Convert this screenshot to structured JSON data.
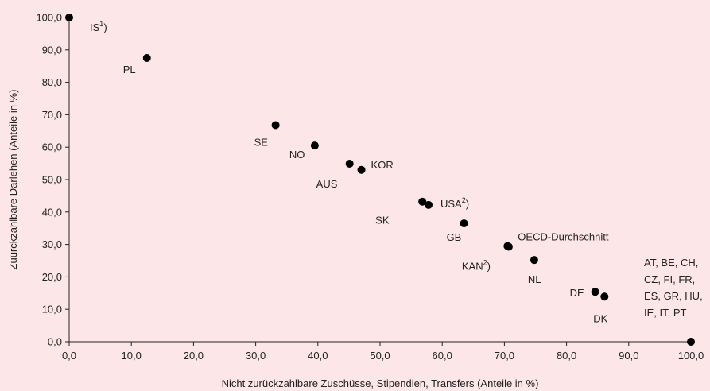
{
  "chart_data": {
    "type": "scatter",
    "xlabel": "Nicht zurückzahlbare Zuschüsse, Stipendien, Transfers (Anteile in %)",
    "ylabel": "Zuürckzahlbare Darlehen (Anteile in %)",
    "xlim": [
      0,
      100
    ],
    "ylim": [
      0,
      100
    ],
    "x_ticks": [
      "0,0",
      "10,0",
      "20,0",
      "30,0",
      "40,0",
      "50,0",
      "60,0",
      "70,0",
      "80,0",
      "90,0",
      "100,0"
    ],
    "y_ticks": [
      "0,0",
      "10,0",
      "20,0",
      "30,0",
      "40,0",
      "50,0",
      "60,0",
      "70,0",
      "80,0",
      "90,0",
      "100,0"
    ],
    "grid": false,
    "points": [
      {
        "x": 0,
        "y": 100,
        "label": "IS",
        "sup": "1",
        "suffix": ")"
      },
      {
        "x": 12.5,
        "y": 87.5,
        "label": "PL"
      },
      {
        "x": 33.2,
        "y": 66.8,
        "label": "SE"
      },
      {
        "x": 39.5,
        "y": 60.5,
        "label": "NO"
      },
      {
        "x": 45.1,
        "y": 54.9,
        "label": "AUS"
      },
      {
        "x": 47.0,
        "y": 53.0,
        "label": "KOR"
      },
      {
        "x": 56.8,
        "y": 43.2,
        "label": "SK"
      },
      {
        "x": 57.8,
        "y": 42.2,
        "label": "USA",
        "sup": "2",
        "suffix": ")"
      },
      {
        "x": 63.5,
        "y": 36.5,
        "label": "GB"
      },
      {
        "x": 70.5,
        "y": 29.5,
        "label": "OECD-Durchschnitt"
      },
      {
        "x": 70.7,
        "y": 29.3,
        "label": "KAN",
        "sup": "2",
        "suffix": ")"
      },
      {
        "x": 74.8,
        "y": 25.2,
        "label": "NL"
      },
      {
        "x": 84.6,
        "y": 15.4,
        "label": "DE"
      },
      {
        "x": 86.1,
        "y": 13.9,
        "label": "DK"
      },
      {
        "x": 100,
        "y": 0,
        "label_lines": [
          "AT, BE, CH,",
          "CZ, FI, FR,",
          "ES, GR, HU,",
          "IE, IT, PT"
        ]
      }
    ]
  }
}
